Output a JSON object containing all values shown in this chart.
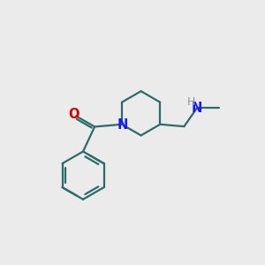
{
  "bg_color": "#ebebeb",
  "bond_color": "#2d6b6b",
  "N_color": "#1a1aff",
  "O_color": "#dd0000",
  "H_color": "#8899aa",
  "line_width": 1.6,
  "figsize": [
    3.0,
    3.0
  ],
  "dpi": 100,
  "xlim": [
    0,
    10
  ],
  "ylim": [
    0,
    10
  ]
}
